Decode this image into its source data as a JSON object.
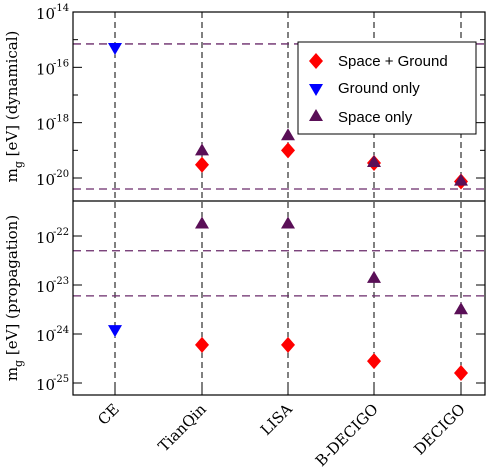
{
  "colors": {
    "space_ground": "#ff0000",
    "ground_only": "#0000ff",
    "space_only": "#5a0f57",
    "bound_line": "#6a2a6a",
    "axes": "#000000"
  },
  "chart_data": {
    "type": "scatter",
    "categories": [
      "CE",
      "TianQin",
      "LISA",
      "B-DECIGO",
      "DECIGO"
    ],
    "grid": "vertical dashed lines at each category",
    "legend": {
      "placement": "top-right of upper panel",
      "entries": [
        {
          "label": "Space + Ground",
          "marker": "diamond",
          "color": "#ff0000"
        },
        {
          "label": "Ground only",
          "marker": "triangle-down",
          "color": "#0000ff"
        },
        {
          "label": "Space only",
          "marker": "triangle-up",
          "color": "#5a0f57"
        }
      ]
    },
    "panels": [
      {
        "id": "dynamical",
        "ylabel_main": "m",
        "ylabel_sub": "g",
        "ylabel_rest": " [eV] (dynamical)",
        "yscale": "log",
        "ylim": [
          1e-21,
          1e-14
        ],
        "yticks": [
          {
            "value": 1e-14,
            "base": "10",
            "exp": "-14"
          },
          {
            "value": 1e-16,
            "base": "10",
            "exp": "-16"
          },
          {
            "value": 1e-18,
            "base": "10",
            "exp": "-18"
          },
          {
            "value": 1e-20,
            "base": "10",
            "exp": "-20"
          }
        ],
        "hlines": [
          7e-16,
          4e-21
        ],
        "series": [
          {
            "name": "Space + Ground",
            "marker": "diamond",
            "points": [
              [
                "TianQin",
                3e-20
              ],
              [
                "LISA",
                1e-19
              ],
              [
                "B-DECIGO",
                3.5e-20
              ],
              [
                "DECIGO",
                7.5e-21
              ]
            ]
          },
          {
            "name": "Ground only",
            "marker": "triangle-down",
            "points": [
              [
                "CE",
                5e-16
              ]
            ]
          },
          {
            "name": "Space only",
            "marker": "triangle-up",
            "points": [
              [
                "TianQin",
                1e-19
              ],
              [
                "LISA",
                3.5e-19
              ],
              [
                "B-DECIGO",
                3.8e-20
              ],
              [
                "DECIGO",
                8e-21
              ]
            ]
          }
        ]
      },
      {
        "id": "propagation",
        "ylabel_main": "m",
        "ylabel_sub": "g",
        "ylabel_rest": " [eV] (propagation)",
        "yscale": "log",
        "ylim": [
          6e-26,
          7e-22
        ],
        "yticks": [
          {
            "value": 1e-22,
            "base": "10",
            "exp": "-22"
          },
          {
            "value": 1e-23,
            "base": "10",
            "exp": "-23"
          },
          {
            "value": 1e-24,
            "base": "10",
            "exp": "-24"
          },
          {
            "value": 1e-25,
            "base": "10",
            "exp": "-25"
          }
        ],
        "hlines": [
          5e-23,
          6e-24
        ],
        "series": [
          {
            "name": "Space + Ground",
            "marker": "diamond",
            "points": [
              [
                "TianQin",
                6e-25
              ],
              [
                "LISA",
                6e-25
              ],
              [
                "B-DECIGO",
                2.8e-25
              ],
              [
                "DECIGO",
                1.6e-25
              ]
            ]
          },
          {
            "name": "Ground only",
            "marker": "triangle-down",
            "points": [
              [
                "CE",
                1.2e-24
              ]
            ]
          },
          {
            "name": "Space only",
            "marker": "triangle-up",
            "points": [
              [
                "TianQin",
                1.8e-22
              ],
              [
                "LISA",
                1.8e-22
              ],
              [
                "B-DECIGO",
                1.4e-23
              ],
              [
                "DECIGO",
                3.2e-24
              ]
            ]
          }
        ]
      }
    ]
  }
}
